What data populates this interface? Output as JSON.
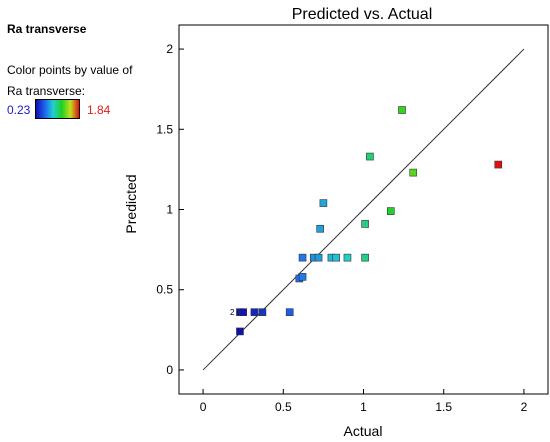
{
  "side_panel": {
    "title": "Ra transverse",
    "color_label_line1": "Color points by value of",
    "color_label_line2": "Ra transverse:",
    "color_min": "0.23",
    "color_max": "1.84",
    "colormap": [
      "#1010b0",
      "#2060f0",
      "#20d0d0",
      "#20d020",
      "#c0e020",
      "#e01010"
    ]
  },
  "chart_data": {
    "type": "scatter",
    "title": "Predicted vs. Actual",
    "xlabel": "Actual",
    "ylabel": "Predicted",
    "xlim": [
      -0.15,
      2.15
    ],
    "ylim": [
      -0.15,
      2.15
    ],
    "xticks": [
      "0",
      "0.5",
      "1",
      "1.5",
      "2"
    ],
    "yticks": [
      "0",
      "0.5",
      "1",
      "1.5",
      "2"
    ],
    "reference_line": [
      [
        0,
        0
      ],
      [
        2,
        2
      ]
    ],
    "grid": false,
    "point_annotation": "2",
    "points": [
      {
        "x": 0.23,
        "y": 0.24
      },
      {
        "x": 0.23,
        "y": 0.36
      },
      {
        "x": 0.25,
        "y": 0.36
      },
      {
        "x": 0.32,
        "y": 0.36
      },
      {
        "x": 0.37,
        "y": 0.36
      },
      {
        "x": 0.54,
        "y": 0.36
      },
      {
        "x": 0.6,
        "y": 0.57
      },
      {
        "x": 0.62,
        "y": 0.58
      },
      {
        "x": 0.62,
        "y": 0.7
      },
      {
        "x": 0.69,
        "y": 0.7
      },
      {
        "x": 0.72,
        "y": 0.7
      },
      {
        "x": 0.73,
        "y": 0.88
      },
      {
        "x": 0.75,
        "y": 1.04
      },
      {
        "x": 0.8,
        "y": 0.7
      },
      {
        "x": 0.83,
        "y": 0.7
      },
      {
        "x": 0.9,
        "y": 0.7
      },
      {
        "x": 1.01,
        "y": 0.7
      },
      {
        "x": 1.01,
        "y": 0.91
      },
      {
        "x": 1.04,
        "y": 1.33
      },
      {
        "x": 1.17,
        "y": 0.99
      },
      {
        "x": 1.24,
        "y": 1.62
      },
      {
        "x": 1.31,
        "y": 1.23
      },
      {
        "x": 1.84,
        "y": 1.28
      }
    ]
  }
}
